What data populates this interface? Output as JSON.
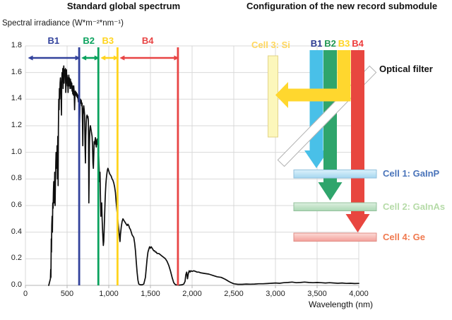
{
  "chart_data": {
    "type": "line",
    "title": "Standard global spectrum",
    "ylabel": "Spectral irradiance (W*m⁻²*nm⁻¹)",
    "xlabel": "Wavelength (nm)",
    "xlim": [
      0,
      4000
    ],
    "ylim": [
      0,
      1.8
    ],
    "grid": true,
    "x_ticks": [
      0,
      500,
      1000,
      1500,
      2000,
      2500,
      3000,
      3500,
      4000
    ],
    "x_tick_labels": [
      "0",
      "500",
      "1,000",
      "1,500",
      "2,000",
      "2,500",
      "3,000",
      "3,500",
      "4,000"
    ],
    "y_ticks": [
      0,
      0.2,
      0.4,
      0.6,
      0.8,
      1.0,
      1.2,
      1.4,
      1.6,
      1.8
    ],
    "y_tick_labels": [
      "0.0",
      "0.2",
      "0.4",
      "0.6",
      "0.8",
      "1.0",
      "1.2",
      "1.4",
      "1.6",
      "1.8"
    ],
    "bands": [
      {
        "label": "B1",
        "color": "#33439c",
        "from_nm": 30,
        "to_nm": 645,
        "boundary_line_nm": 645
      },
      {
        "label": "B2",
        "color": "#0aa25e",
        "from_nm": 645,
        "to_nm": 875,
        "boundary_line_nm": 875
      },
      {
        "label": "B3",
        "color": "#ffd41e",
        "from_nm": 875,
        "to_nm": 1105,
        "boundary_line_nm": 1105
      },
      {
        "label": "B4",
        "color": "#e84444",
        "from_nm": 1105,
        "to_nm": 1830,
        "boundary_line_nm": 1830
      }
    ],
    "series": [
      {
        "name": "AM1.5 global spectral irradiance",
        "points": [
          [
            280,
            0
          ],
          [
            300,
            0.05
          ],
          [
            303,
            0.12
          ],
          [
            306,
            0.06
          ],
          [
            310,
            0.35
          ],
          [
            313,
            0.25
          ],
          [
            316,
            0.45
          ],
          [
            320,
            0.52
          ],
          [
            324,
            0.4
          ],
          [
            328,
            0.62
          ],
          [
            332,
            0.58
          ],
          [
            336,
            0.7
          ],
          [
            340,
            0.78
          ],
          [
            344,
            0.62
          ],
          [
            348,
            0.72
          ],
          [
            352,
            0.85
          ],
          [
            356,
            0.6
          ],
          [
            360,
            0.78
          ],
          [
            364,
            0.92
          ],
          [
            368,
            1.0
          ],
          [
            372,
            0.95
          ],
          [
            376,
            0.88
          ],
          [
            380,
            1.05
          ],
          [
            384,
            0.8
          ],
          [
            388,
            1.12
          ],
          [
            392,
            0.75
          ],
          [
            396,
            1.18
          ],
          [
            400,
            1.4
          ],
          [
            404,
            1.32
          ],
          [
            408,
            1.48
          ],
          [
            412,
            1.4
          ],
          [
            416,
            1.52
          ],
          [
            420,
            1.56
          ],
          [
            424,
            1.48
          ],
          [
            428,
            1.44
          ],
          [
            432,
            1.28
          ],
          [
            436,
            1.52
          ],
          [
            440,
            1.6
          ],
          [
            444,
            1.55
          ],
          [
            448,
            1.63
          ],
          [
            452,
            1.48
          ],
          [
            456,
            1.6
          ],
          [
            460,
            1.65
          ],
          [
            464,
            1.52
          ],
          [
            468,
            1.6
          ],
          [
            472,
            1.62
          ],
          [
            476,
            1.58
          ],
          [
            480,
            1.63
          ],
          [
            484,
            1.45
          ],
          [
            488,
            1.52
          ],
          [
            492,
            1.62
          ],
          [
            496,
            1.52
          ],
          [
            500,
            1.58
          ],
          [
            504,
            1.5
          ],
          [
            508,
            1.56
          ],
          [
            512,
            1.45
          ],
          [
            516,
            1.55
          ],
          [
            520,
            1.58
          ],
          [
            524,
            1.5
          ],
          [
            528,
            1.56
          ],
          [
            532,
            1.52
          ],
          [
            536,
            1.48
          ],
          [
            540,
            1.55
          ],
          [
            544,
            1.5
          ],
          [
            548,
            1.53
          ],
          [
            552,
            1.48
          ],
          [
            556,
            1.52
          ],
          [
            560,
            1.46
          ],
          [
            564,
            1.5
          ],
          [
            568,
            1.44
          ],
          [
            572,
            1.48
          ],
          [
            576,
            1.43
          ],
          [
            580,
            1.5
          ],
          [
            585,
            1.46
          ],
          [
            590,
            1.32
          ],
          [
            595,
            1.44
          ],
          [
            600,
            1.46
          ],
          [
            605,
            1.43
          ],
          [
            610,
            1.45
          ],
          [
            615,
            1.42
          ],
          [
            620,
            1.44
          ],
          [
            625,
            1.41
          ],
          [
            630,
            1.43
          ],
          [
            635,
            1.38
          ],
          [
            640,
            1.42
          ],
          [
            645,
            1.35
          ],
          [
            650,
            1.22
          ],
          [
            655,
            1.38
          ],
          [
            660,
            1.4
          ],
          [
            665,
            1.37
          ],
          [
            670,
            1.39
          ],
          [
            675,
            1.35
          ],
          [
            680,
            1.37
          ],
          [
            685,
            1.22
          ],
          [
            688,
            1.05
          ],
          [
            692,
            1.28
          ],
          [
            696,
            1.33
          ],
          [
            700,
            1.35
          ],
          [
            705,
            1.32
          ],
          [
            710,
            1.28
          ],
          [
            715,
            1.05
          ],
          [
            720,
            0.92
          ],
          [
            725,
            1.12
          ],
          [
            730,
            1.22
          ],
          [
            735,
            1.27
          ],
          [
            740,
            1.28
          ],
          [
            745,
            1.26
          ],
          [
            750,
            1.27
          ],
          [
            755,
            1.24
          ],
          [
            758,
            1.1
          ],
          [
            761,
            0.62
          ],
          [
            764,
            0.8
          ],
          [
            768,
            1.05
          ],
          [
            772,
            1.16
          ],
          [
            776,
            1.19
          ],
          [
            780,
            1.2
          ],
          [
            785,
            1.18
          ],
          [
            790,
            1.16
          ],
          [
            795,
            1.14
          ],
          [
            800,
            1.12
          ],
          [
            805,
            1.05
          ],
          [
            810,
            0.92
          ],
          [
            815,
            0.88
          ],
          [
            820,
            0.98
          ],
          [
            825,
            1.08
          ],
          [
            830,
            1.06
          ],
          [
            835,
            1.09
          ],
          [
            840,
            1.11
          ],
          [
            845,
            1.07
          ],
          [
            850,
            1.04
          ],
          [
            855,
            1.08
          ],
          [
            860,
            1.1
          ],
          [
            865,
            1.06
          ],
          [
            870,
            1.08
          ],
          [
            875,
            1.02
          ],
          [
            880,
            0.96
          ],
          [
            885,
            0.88
          ],
          [
            890,
            0.78
          ],
          [
            895,
            0.85
          ],
          [
            900,
            0.68
          ],
          [
            905,
            0.52
          ],
          [
            910,
            0.58
          ],
          [
            915,
            0.62
          ],
          [
            920,
            0.5
          ],
          [
            925,
            0.42
          ],
          [
            930,
            0.36
          ],
          [
            935,
            0.3
          ],
          [
            940,
            0.33
          ],
          [
            945,
            0.42
          ],
          [
            950,
            0.52
          ],
          [
            955,
            0.62
          ],
          [
            960,
            0.7
          ],
          [
            965,
            0.76
          ],
          [
            970,
            0.8
          ],
          [
            975,
            0.83
          ],
          [
            980,
            0.85
          ],
          [
            985,
            0.87
          ],
          [
            990,
            0.88
          ],
          [
            1000,
            0.86
          ],
          [
            1010,
            0.84
          ],
          [
            1020,
            0.83
          ],
          [
            1030,
            0.82
          ],
          [
            1040,
            0.8
          ],
          [
            1050,
            0.79
          ],
          [
            1060,
            0.77
          ],
          [
            1070,
            0.74
          ],
          [
            1080,
            0.7
          ],
          [
            1090,
            0.62
          ],
          [
            1100,
            0.55
          ],
          [
            1110,
            0.48
          ],
          [
            1120,
            0.42
          ],
          [
            1130,
            0.36
          ],
          [
            1135,
            0.33
          ],
          [
            1140,
            0.38
          ],
          [
            1150,
            0.44
          ],
          [
            1160,
            0.48
          ],
          [
            1170,
            0.5
          ],
          [
            1180,
            0.49
          ],
          [
            1190,
            0.48
          ],
          [
            1200,
            0.47
          ],
          [
            1210,
            0.46
          ],
          [
            1220,
            0.45
          ],
          [
            1230,
            0.46
          ],
          [
            1240,
            0.45
          ],
          [
            1250,
            0.43
          ],
          [
            1260,
            0.42
          ],
          [
            1270,
            0.4
          ],
          [
            1280,
            0.38
          ],
          [
            1290,
            0.37
          ],
          [
            1300,
            0.36
          ],
          [
            1310,
            0.32
          ],
          [
            1320,
            0.26
          ],
          [
            1330,
            0.18
          ],
          [
            1340,
            0.1
          ],
          [
            1350,
            0.04
          ],
          [
            1360,
            0.01
          ],
          [
            1380,
            0.005
          ],
          [
            1400,
            0.005
          ],
          [
            1420,
            0.01
          ],
          [
            1440,
            0.06
          ],
          [
            1450,
            0.13
          ],
          [
            1460,
            0.2
          ],
          [
            1470,
            0.25
          ],
          [
            1480,
            0.27
          ],
          [
            1490,
            0.29
          ],
          [
            1500,
            0.28
          ],
          [
            1510,
            0.29
          ],
          [
            1520,
            0.28
          ],
          [
            1530,
            0.27
          ],
          [
            1540,
            0.26
          ],
          [
            1550,
            0.26
          ],
          [
            1560,
            0.25
          ],
          [
            1570,
            0.25
          ],
          [
            1580,
            0.24
          ],
          [
            1590,
            0.24
          ],
          [
            1600,
            0.24
          ],
          [
            1620,
            0.23
          ],
          [
            1640,
            0.22
          ],
          [
            1660,
            0.21
          ],
          [
            1680,
            0.2
          ],
          [
            1700,
            0.18
          ],
          [
            1720,
            0.15
          ],
          [
            1740,
            0.11
          ],
          [
            1760,
            0.06
          ],
          [
            1780,
            0.02
          ],
          [
            1800,
            0.005
          ],
          [
            1820,
            0.003
          ],
          [
            1840,
            0.002
          ],
          [
            1860,
            0.003
          ],
          [
            1880,
            0.005
          ],
          [
            1900,
            0.01
          ],
          [
            1915,
            0.03
          ],
          [
            1925,
            0.08
          ],
          [
            1935,
            0.1
          ],
          [
            1945,
            0.05
          ],
          [
            1955,
            0.09
          ],
          [
            1965,
            0.11
          ],
          [
            1975,
            0.1
          ],
          [
            1985,
            0.11
          ],
          [
            2000,
            0.105
          ],
          [
            2020,
            0.11
          ],
          [
            2040,
            0.105
          ],
          [
            2060,
            0.1
          ],
          [
            2080,
            0.1
          ],
          [
            2100,
            0.095
          ],
          [
            2150,
            0.09
          ],
          [
            2200,
            0.085
          ],
          [
            2250,
            0.075
          ],
          [
            2300,
            0.065
          ],
          [
            2350,
            0.06
          ],
          [
            2400,
            0.045
          ],
          [
            2440,
            0.03
          ],
          [
            2470,
            0.02
          ],
          [
            2500,
            0.012
          ],
          [
            2550,
            0.008
          ],
          [
            2600,
            0.008
          ],
          [
            2650,
            0.01
          ],
          [
            2700,
            0.009
          ],
          [
            2750,
            0.01
          ],
          [
            2800,
            0.012
          ],
          [
            2850,
            0.012
          ],
          [
            2900,
            0.014
          ],
          [
            2950,
            0.016
          ],
          [
            3000,
            0.018
          ],
          [
            3050,
            0.016
          ],
          [
            3100,
            0.02
          ],
          [
            3150,
            0.022
          ],
          [
            3200,
            0.025
          ],
          [
            3250,
            0.02
          ],
          [
            3300,
            0.022
          ],
          [
            3350,
            0.025
          ],
          [
            3400,
            0.022
          ],
          [
            3450,
            0.02
          ],
          [
            3500,
            0.022
          ],
          [
            3550,
            0.02
          ],
          [
            3600,
            0.018
          ],
          [
            3650,
            0.02
          ],
          [
            3700,
            0.018
          ],
          [
            3750,
            0.016
          ],
          [
            3800,
            0.018
          ],
          [
            3850,
            0.015
          ],
          [
            3900,
            0.016
          ],
          [
            3950,
            0.014
          ],
          [
            4000,
            0.015
          ]
        ]
      }
    ]
  },
  "diagram": {
    "title": "Configuration of the new record submodule",
    "optical_filter_label": "Optical filter",
    "beams": [
      {
        "label": "B1",
        "label_color": "#2b3990",
        "beam_color": "#49c0e8"
      },
      {
        "label": "B2",
        "label_color": "#1f9651",
        "beam_color": "#2fa56c"
      },
      {
        "label": "B3",
        "label_color": "#ffd41e",
        "beam_color": "#ffd72e"
      },
      {
        "label": "B4",
        "label_color": "#ed3b3b",
        "beam_color": "#e8463f"
      }
    ],
    "cells": [
      {
        "id": "cell3",
        "label": "Cell 3: Si",
        "label_color": "#ffd75e"
      },
      {
        "id": "cell1",
        "label": "Cell 1: GaInP",
        "label_color": "#4a74ba"
      },
      {
        "id": "cell2",
        "label": "Cell 2: GaInAs",
        "label_color": "#b6dba8"
      },
      {
        "id": "cell4",
        "label": "Cell 4: Ge",
        "label_color": "#f07a50"
      }
    ]
  }
}
